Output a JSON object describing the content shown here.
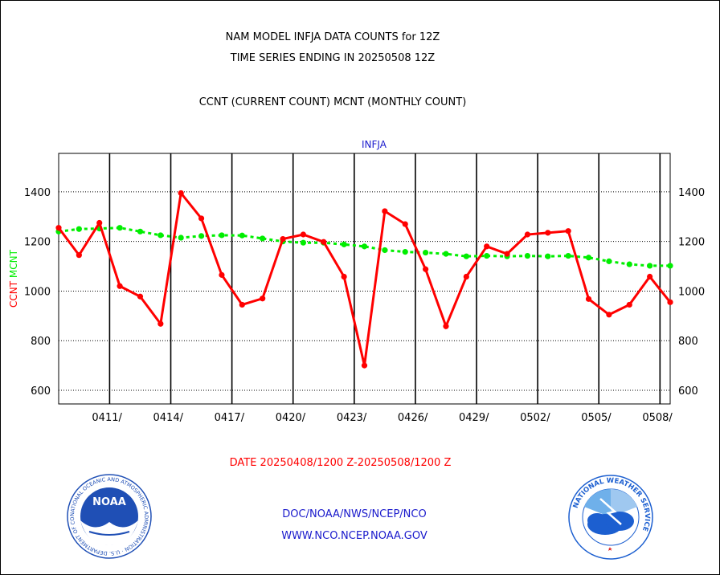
{
  "header": {
    "line1": "NAM MODEL INFJA DATA COUNTS for 12Z",
    "line2": "TIME SERIES ENDING IN 20250508 12Z",
    "line3": "CCNT (CURRENT COUNT) MCNT (MONTHLY COUNT)"
  },
  "chart_data": {
    "type": "line",
    "title": "INFJA",
    "ylabel_ccnt": "CCNT",
    "ylabel_mcnt": "MCNT",
    "xlabel": "DATE 20250408/1200 Z-20250508/1200 Z",
    "ylim": [
      545,
      1555
    ],
    "yticks": [
      600,
      800,
      1000,
      1200,
      1400
    ],
    "x_days": [
      0,
      1,
      2,
      3,
      4,
      5,
      6,
      7,
      8,
      9,
      10,
      11,
      12,
      13,
      14,
      15,
      16,
      17,
      18,
      19,
      20,
      21,
      22,
      23,
      24,
      25,
      26,
      27,
      28,
      29,
      30
    ],
    "xlim": [
      0,
      30
    ],
    "xticks": [
      {
        "day": 2.5,
        "label": "0411/"
      },
      {
        "day": 5.5,
        "label": "0414/"
      },
      {
        "day": 8.5,
        "label": "0417/"
      },
      {
        "day": 11.5,
        "label": "0420/"
      },
      {
        "day": 14.5,
        "label": "0423/"
      },
      {
        "day": 17.5,
        "label": "0426/"
      },
      {
        "day": 20.5,
        "label": "0429/"
      },
      {
        "day": 23.5,
        "label": "0502/"
      },
      {
        "day": 26.5,
        "label": "0505/"
      },
      {
        "day": 29.5,
        "label": "0508/"
      }
    ],
    "series": [
      {
        "name": "CCNT",
        "color": "#ff0000",
        "values": [
          1255,
          1145,
          1275,
          1020,
          978,
          868,
          1395,
          1293,
          1065,
          945,
          970,
          1210,
          1228,
          1198,
          1058,
          700,
          1322,
          1270,
          1088,
          858,
          1058,
          1180,
          1150,
          1228,
          1235,
          1242,
          968,
          905,
          945,
          1058,
          955
        ]
      },
      {
        "name": "MCNT",
        "color": "#00ee00",
        "values": [
          1240,
          1250,
          1252,
          1255,
          1240,
          1225,
          1215,
          1222,
          1225,
          1224,
          1212,
          1200,
          1195,
          1195,
          1188,
          1180,
          1165,
          1158,
          1155,
          1150,
          1140,
          1142,
          1140,
          1142,
          1140,
          1142,
          1135,
          1120,
          1108,
          1102,
          1102
        ]
      }
    ]
  },
  "footer": {
    "org1": "DOC/NOAA/NWS/NCEP/NCO",
    "org2": "WWW.NCO.NCEP.NOAA.GOV"
  },
  "logos": {
    "noaa_text": "NOAA",
    "noaa_ring": "NATIONAL OCEANIC AND ATMOSPHERIC ADMINISTRATION · U.S. DEPARTMENT OF COMMERCE ·",
    "nws_ring": "NATIONAL WEATHER SERVICE"
  },
  "colors": {
    "ccnt": "#ff0000",
    "mcnt": "#00ee00",
    "link_blue": "#1a1acc",
    "noaa_blue": "#1f4fb5",
    "nws_blue": "#1c5fd0"
  }
}
